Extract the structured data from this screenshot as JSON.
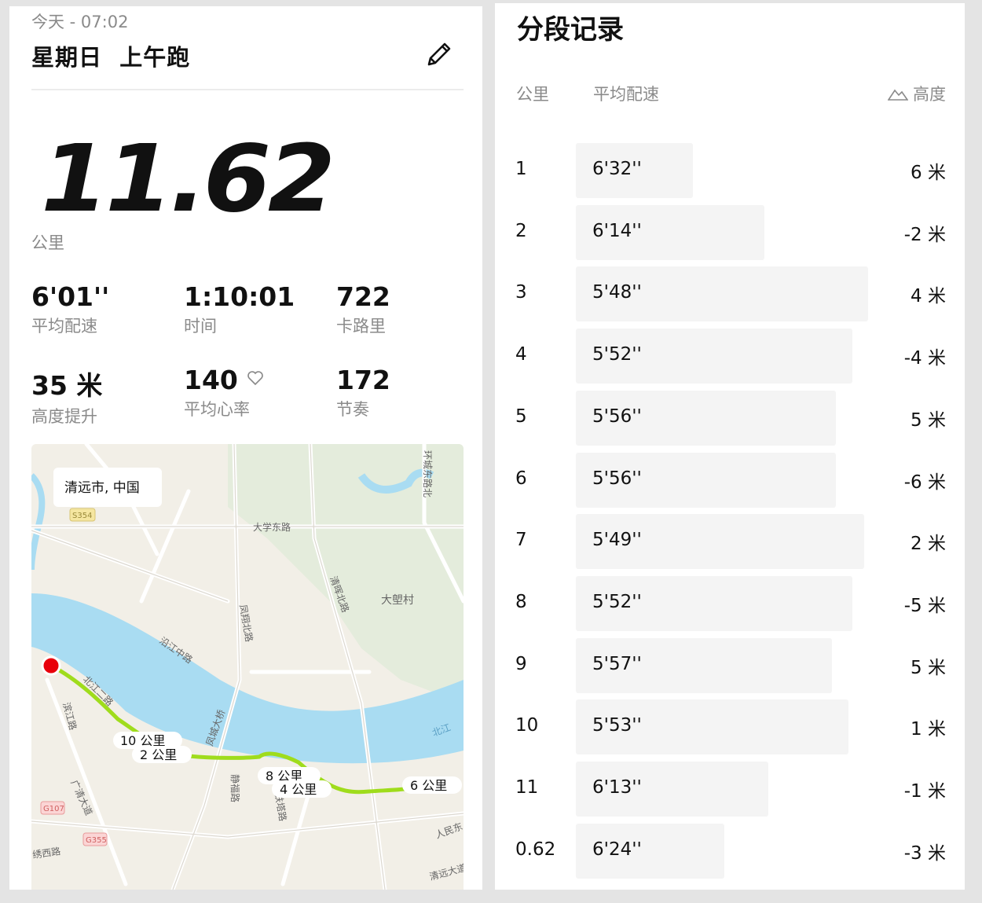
{
  "header": {
    "date": "今天 - 07:02",
    "title": "星期日  上午跑",
    "edit_icon": "pencil-icon"
  },
  "summary": {
    "distance": "11.62",
    "distance_unit": "公里"
  },
  "stats": [
    {
      "value": "6'01''",
      "label": "平均配速"
    },
    {
      "value": "1:10:01",
      "label": "时间"
    },
    {
      "value": "722",
      "label": "卡路里"
    },
    {
      "value": "35 米",
      "label": "高度提升"
    },
    {
      "value": "140",
      "label": "平均心率",
      "icon": "heart-icon"
    },
    {
      "value": "172",
      "label": "节奏"
    }
  ],
  "map": {
    "location": "清远市, 中国",
    "route_color": "#9fdc1c",
    "start_color": "#e8000b",
    "river_color": "#a9dcf2",
    "markers": [
      "10 公里",
      "2 公里",
      "8 公里",
      "4 公里",
      "6 公里"
    ],
    "labels": [
      "大学东路",
      "大塱村",
      "清晖北路",
      "凤翔北路",
      "沿江中路",
      "北江",
      "凤城大桥",
      "北江二路",
      "滨江路",
      "广清大道",
      "静福路",
      "铁塔路",
      "人民东",
      "绣西路",
      "环城东路北",
      "清远大道",
      "S354",
      "G107",
      "G355"
    ]
  },
  "splits": {
    "title": "分段记录",
    "col_km": "公里",
    "col_pace": "平均配速",
    "col_elev": "高度",
    "elev_icon": "mountain-icon",
    "rows": [
      {
        "km": "1",
        "pace": "6'32''",
        "sec": 392,
        "elev": "6 米"
      },
      {
        "km": "2",
        "pace": "6'14''",
        "sec": 374,
        "elev": "-2 米"
      },
      {
        "km": "3",
        "pace": "5'48''",
        "sec": 348,
        "elev": "4 米"
      },
      {
        "km": "4",
        "pace": "5'52''",
        "sec": 352,
        "elev": "-4 米"
      },
      {
        "km": "5",
        "pace": "5'56''",
        "sec": 356,
        "elev": "5 米"
      },
      {
        "km": "6",
        "pace": "5'56''",
        "sec": 356,
        "elev": "-6 米"
      },
      {
        "km": "7",
        "pace": "5'49''",
        "sec": 349,
        "elev": "2 米"
      },
      {
        "km": "8",
        "pace": "5'52''",
        "sec": 352,
        "elev": "-5 米"
      },
      {
        "km": "9",
        "pace": "5'57''",
        "sec": 357,
        "elev": "5 米"
      },
      {
        "km": "10",
        "pace": "5'53''",
        "sec": 353,
        "elev": "1 米"
      },
      {
        "km": "11",
        "pace": "6'13''",
        "sec": 373,
        "elev": "-1 米"
      },
      {
        "km": "0.62",
        "pace": "6'24''",
        "sec": 384,
        "elev": "-3 米"
      }
    ]
  }
}
